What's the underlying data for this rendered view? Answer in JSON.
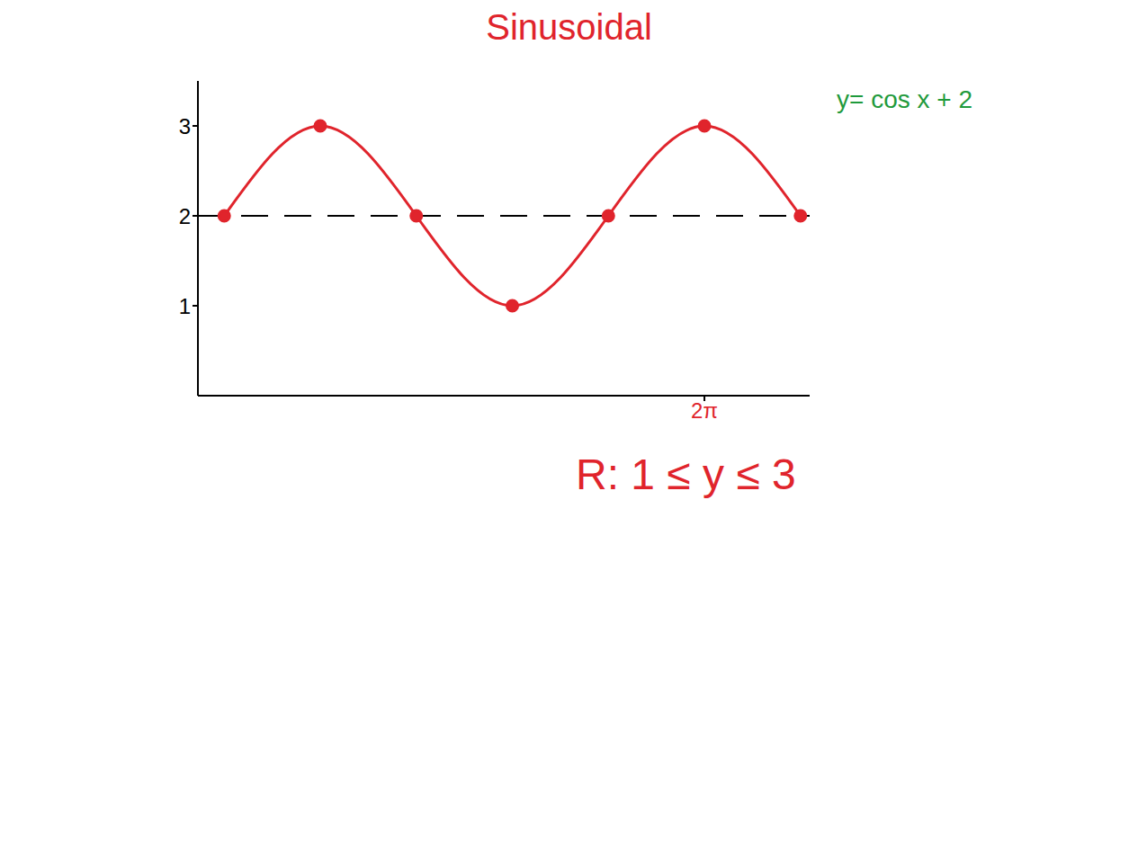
{
  "chart_data": {
    "type": "line",
    "title": "Sinusoidal",
    "x": [
      -1.57,
      0,
      1.57,
      3.14,
      4.71,
      6.28,
      7.85
    ],
    "values": [
      2,
      3,
      2,
      1,
      2,
      3,
      2
    ],
    "color": "#e0242c",
    "marker": "circle",
    "xlim": [
      -2,
      8
    ],
    "xticks": [
      {
        "value": 6.28,
        "label": "2π"
      }
    ],
    "ylim": [
      0,
      3.5
    ],
    "yticks": [
      1,
      2,
      3
    ],
    "midline": 2,
    "annotations": [
      {
        "text": "y= cos x + 2",
        "color": "#1f9a3c"
      },
      {
        "text": "R: 1 ≤ y ≤ 3",
        "color": "#e0242c"
      }
    ]
  }
}
